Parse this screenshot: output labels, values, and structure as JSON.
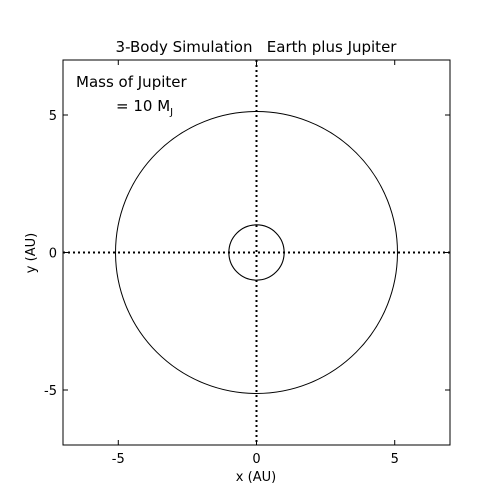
{
  "chart_data": {
    "type": "line",
    "title": "3-Body Simulation   Earth plus Jupiter",
    "xlabel": "x (AU)",
    "ylabel": "y (AU)",
    "xlim": [
      -7,
      7
    ],
    "ylim": [
      -7,
      7
    ],
    "xticks": [
      -5,
      0,
      5
    ],
    "yticks": [
      -5,
      0,
      5
    ],
    "x_tick_labels": [
      "-5",
      "0",
      "5"
    ],
    "y_tick_labels": [
      "-5",
      "0",
      "5"
    ],
    "annotation": {
      "line1": "Mass of Jupiter",
      "line2_prefix": "= 10 M",
      "line2_subscript": "J"
    },
    "reference_lines": [
      {
        "orientation": "vertical",
        "x": 0,
        "style": "dotted"
      },
      {
        "orientation": "horizontal",
        "y": 0,
        "style": "dotted"
      }
    ],
    "series": [
      {
        "orbit": "inner",
        "shape": "circle",
        "center": [
          0,
          0
        ],
        "radius": 1.0,
        "stroke_AU": 0.04
      },
      {
        "orbit": "outer",
        "shape": "circle",
        "center": [
          0,
          0
        ],
        "radius": 5.1,
        "stroke_AU": 0.03
      }
    ],
    "grid": false,
    "colors": {
      "line": "#000000",
      "background": "#ffffff"
    }
  }
}
